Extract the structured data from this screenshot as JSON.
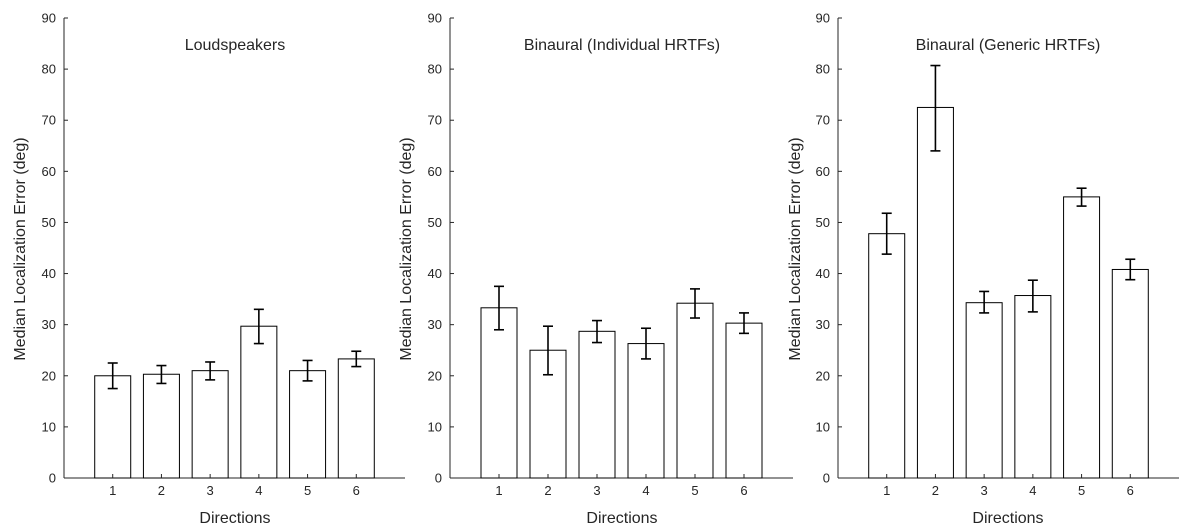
{
  "chart_data": [
    {
      "type": "bar",
      "title": "Loudspeakers",
      "xlabel": "Directions",
      "ylabel": "Median Localization Error (deg)",
      "categories": [
        "1",
        "2",
        "3",
        "4",
        "5",
        "6"
      ],
      "values": [
        20,
        20.3,
        21,
        29.7,
        21,
        23.3
      ],
      "error_low": [
        17.5,
        18.5,
        19.2,
        26.3,
        19,
        21.8
      ],
      "error_high": [
        22.5,
        22,
        22.7,
        33,
        23,
        24.8
      ],
      "ylim": [
        0,
        90
      ],
      "yticks": [
        "0",
        "10",
        "20",
        "30",
        "40",
        "50",
        "60",
        "70",
        "80",
        "90"
      ],
      "grid": false,
      "legend": "none"
    },
    {
      "type": "bar",
      "title": "Binaural (Individual HRTFs)",
      "xlabel": "Directions",
      "ylabel": "Median Localization Error (deg)",
      "categories": [
        "1",
        "2",
        "3",
        "4",
        "5",
        "6"
      ],
      "values": [
        33.3,
        25,
        28.7,
        26.3,
        34.2,
        30.3
      ],
      "error_low": [
        29,
        20.2,
        26.5,
        23.3,
        31.3,
        28.3
      ],
      "error_high": [
        37.5,
        29.7,
        30.8,
        29.3,
        37,
        32.3
      ],
      "ylim": [
        0,
        90
      ],
      "yticks": [
        "0",
        "10",
        "20",
        "30",
        "40",
        "50",
        "60",
        "70",
        "80",
        "90"
      ],
      "grid": false,
      "legend": "none"
    },
    {
      "type": "bar",
      "title": "Binaural (Generic HRTFs)",
      "xlabel": "Directions",
      "ylabel": "Median Localization Error (deg)",
      "categories": [
        "1",
        "2",
        "3",
        "4",
        "5",
        "6"
      ],
      "values": [
        47.8,
        72.5,
        34.3,
        35.7,
        55,
        40.8
      ],
      "error_low": [
        43.8,
        64,
        32.3,
        32.5,
        53.2,
        38.8
      ],
      "error_high": [
        51.8,
        80.7,
        36.5,
        38.7,
        56.7,
        42.8
      ],
      "ylim": [
        0,
        90
      ],
      "yticks": [
        "0",
        "10",
        "20",
        "30",
        "40",
        "50",
        "60",
        "70",
        "80",
        "90"
      ],
      "grid": false,
      "legend": "none"
    }
  ]
}
